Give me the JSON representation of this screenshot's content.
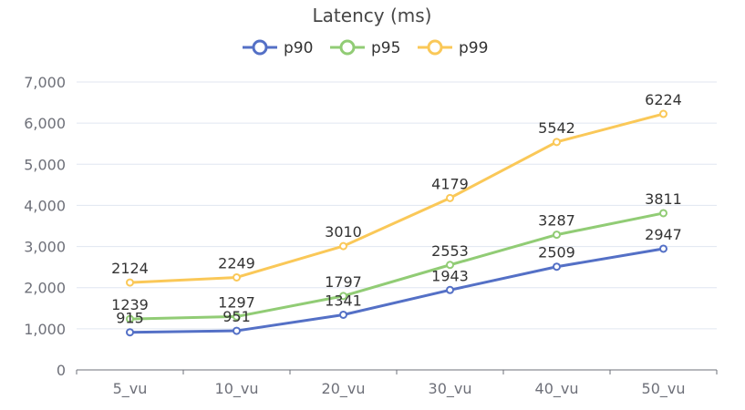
{
  "chart_data": {
    "type": "line",
    "title": "Latency (ms)",
    "categories": [
      "5_vu",
      "10_vu",
      "20_vu",
      "30_vu",
      "40_vu",
      "50_vu"
    ],
    "ylim": [
      0,
      7000
    ],
    "yticks": [
      0,
      1000,
      2000,
      3000,
      4000,
      5000,
      6000,
      7000
    ],
    "ytick_labels": [
      "0",
      "1,000",
      "2,000",
      "3,000",
      "4,000",
      "5,000",
      "6,000",
      "7,000"
    ],
    "legend_position": "top-center",
    "grid": true,
    "series": [
      {
        "name": "p90",
        "color": "#5470c6",
        "values": [
          915,
          951,
          1341,
          1943,
          2509,
          2947
        ]
      },
      {
        "name": "p95",
        "color": "#91cc75",
        "values": [
          1239,
          1297,
          1797,
          2553,
          3287,
          3811
        ]
      },
      {
        "name": "p99",
        "color": "#fac858",
        "values": [
          2124,
          2249,
          3010,
          4179,
          5542,
          6224
        ]
      }
    ]
  }
}
